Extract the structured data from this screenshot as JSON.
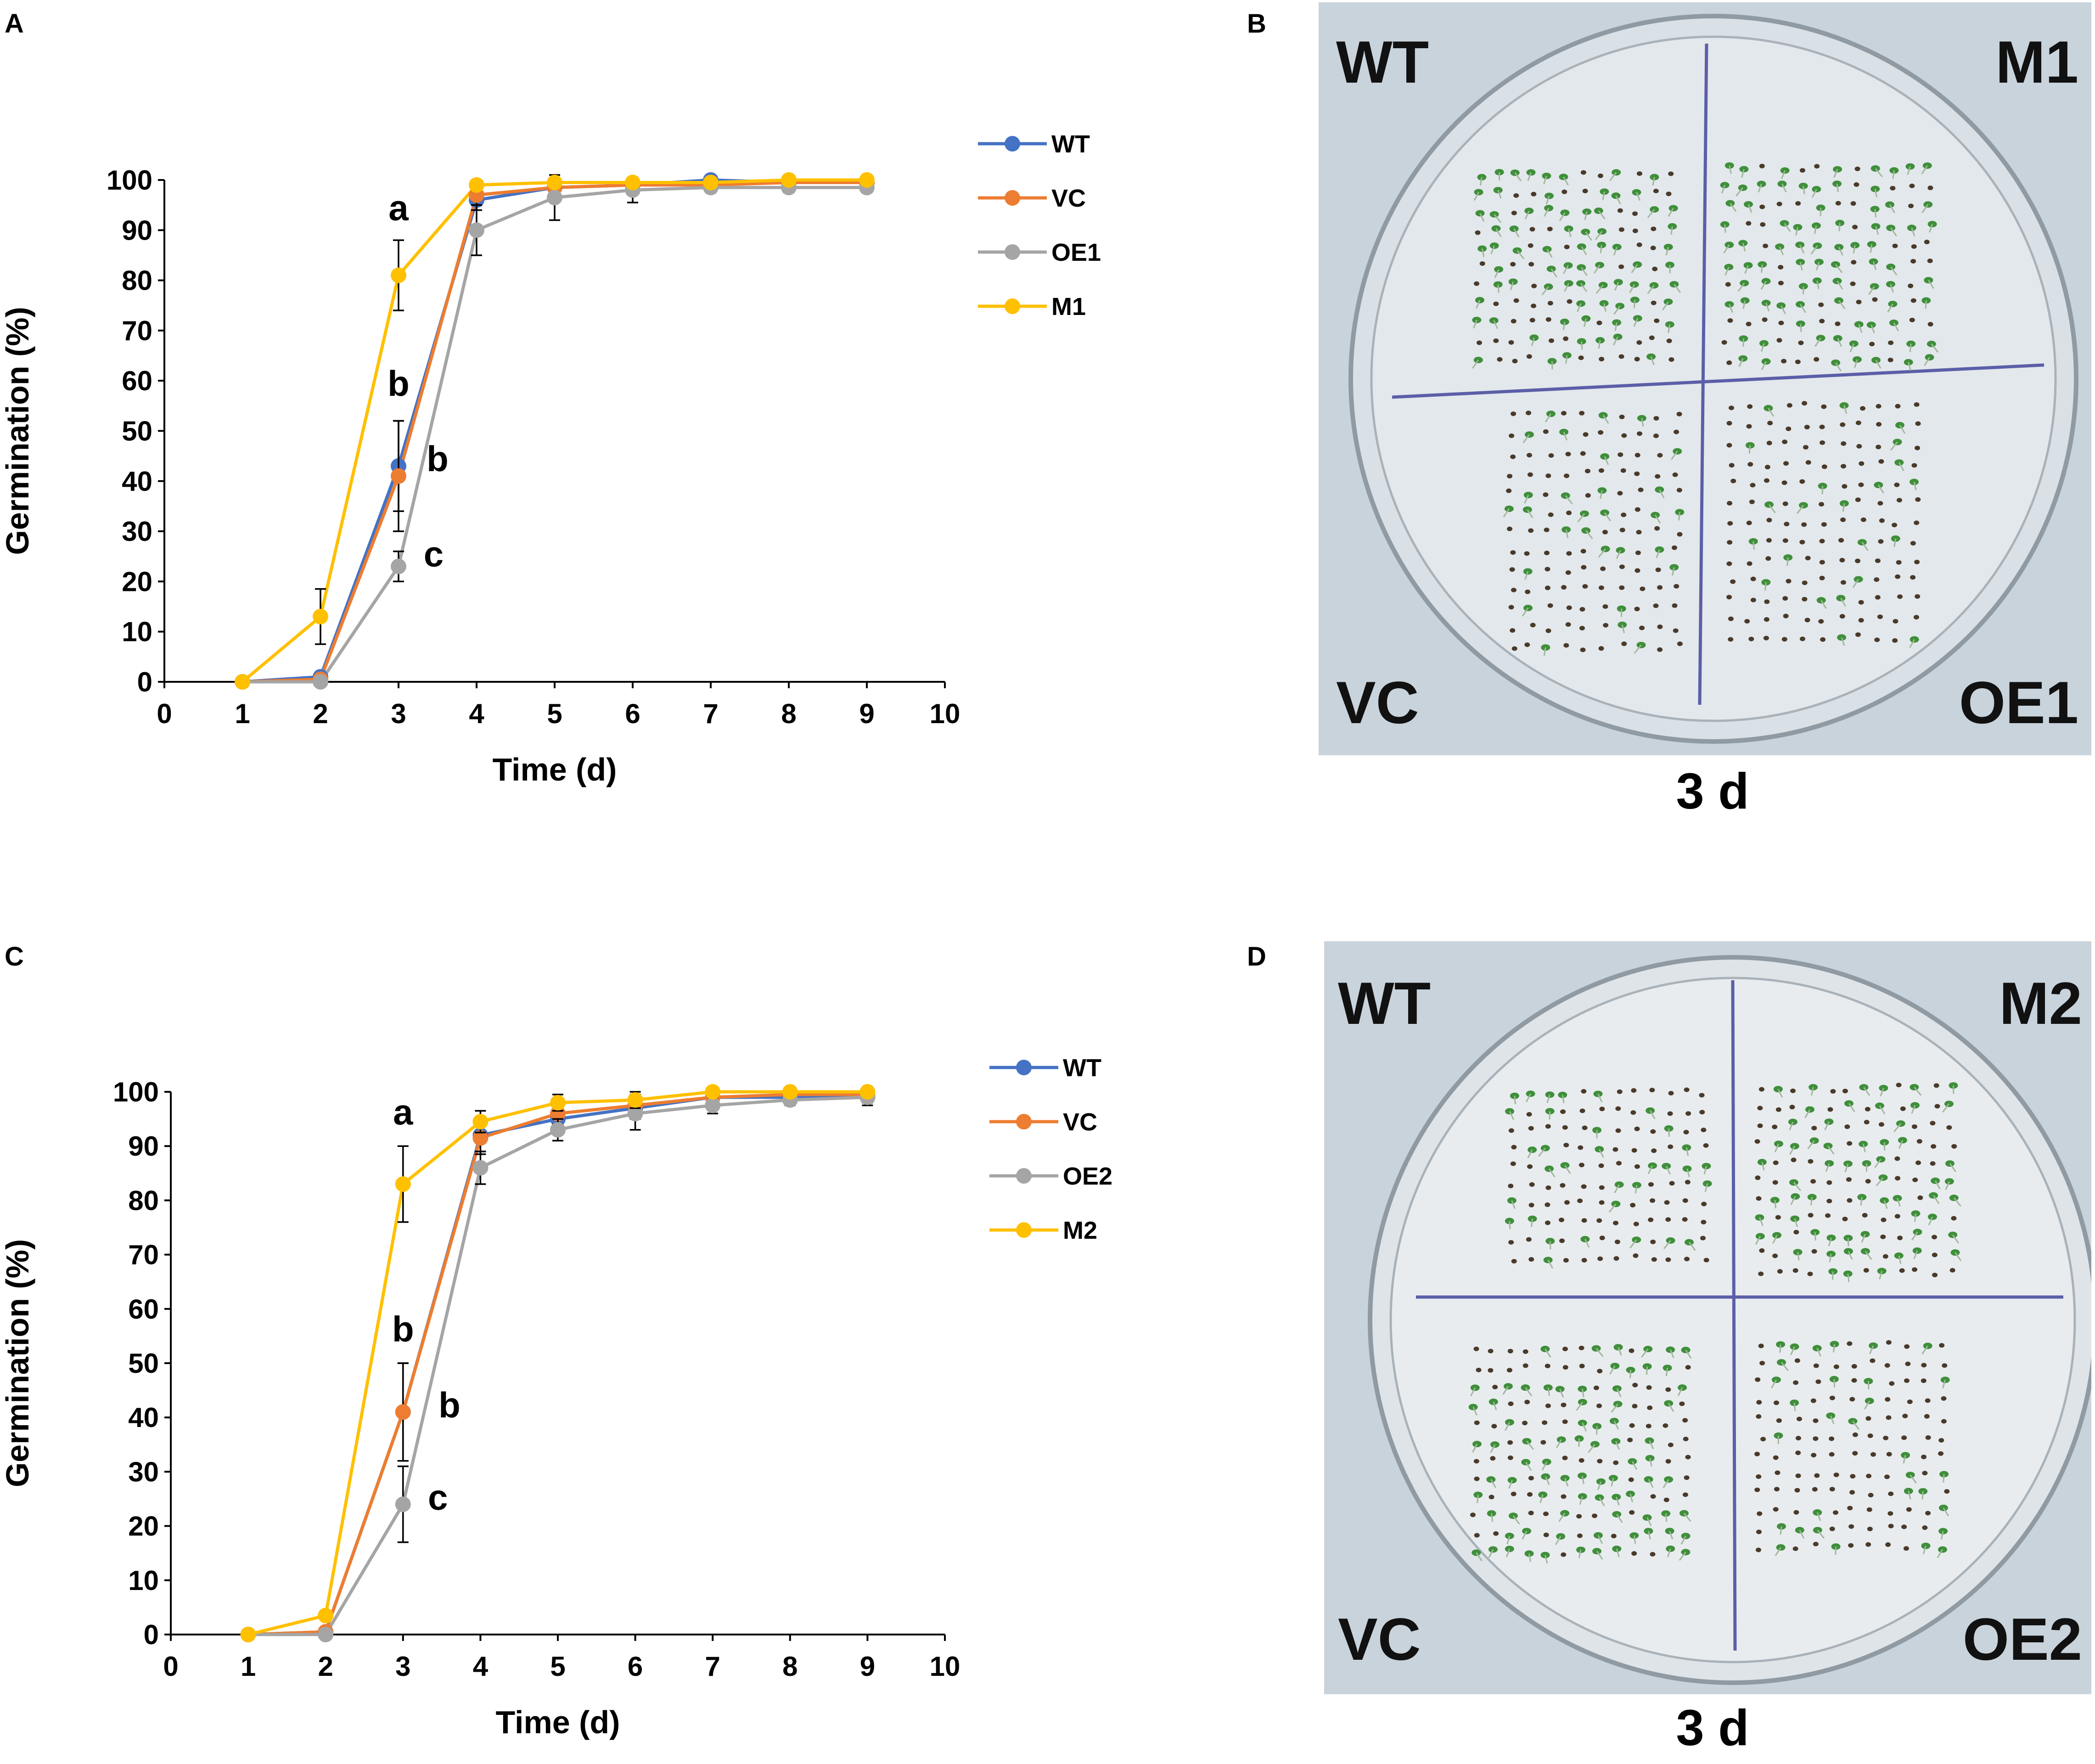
{
  "panels": {
    "A": "A",
    "B": "B",
    "C": "C",
    "D": "D"
  },
  "colors": {
    "WT": "#4472C4",
    "VC": "#ED7D31",
    "OE": "#A5A5A5",
    "M": "#FFC000"
  },
  "chart_data": [
    {
      "id": "A",
      "type": "line",
      "title": "",
      "xlabel": "Time (d)",
      "ylabel": "Germination (%)",
      "xlim": [
        0,
        10
      ],
      "ylim": [
        0,
        100
      ],
      "xticks": [
        0,
        1,
        2,
        3,
        4,
        5,
        6,
        7,
        8,
        9,
        10
      ],
      "yticks": [
        0,
        10,
        20,
        30,
        40,
        50,
        60,
        70,
        80,
        90,
        100
      ],
      "x": [
        1,
        2,
        3,
        4,
        5,
        6,
        7,
        8,
        9
      ],
      "series": [
        {
          "name": "WT",
          "color": "#4472C4",
          "values": [
            0,
            1,
            43,
            96,
            98.5,
            99,
            100,
            99.5,
            99.5
          ],
          "errors": [
            0,
            0.5,
            9,
            2,
            1.5,
            1,
            0,
            0.5,
            0.5
          ]
        },
        {
          "name": "VC",
          "color": "#ED7D31",
          "values": [
            0,
            0.5,
            41,
            97,
            98.5,
            99,
            99,
            99.5,
            99.5
          ],
          "errors": [
            0,
            0.5,
            11,
            2,
            1,
            1,
            1,
            0.5,
            0.5
          ]
        },
        {
          "name": "OE1",
          "color": "#A5A5A5",
          "values": [
            0,
            0,
            23,
            90,
            96.5,
            98,
            98.5,
            98.5,
            98.5
          ],
          "errors": [
            0,
            0,
            3,
            5,
            4.5,
            2.5,
            1,
            1,
            1
          ]
        },
        {
          "name": "M1",
          "color": "#FFC000",
          "values": [
            0,
            13,
            81,
            99,
            99.5,
            99.5,
            99.5,
            100,
            100
          ],
          "errors": [
            0,
            5.5,
            7,
            1,
            0.5,
            0.5,
            0.5,
            0,
            0
          ]
        }
      ],
      "annotations": [
        {
          "text": "a",
          "x": 3,
          "y": 92
        },
        {
          "text": "b",
          "x": 3,
          "y": 57
        },
        {
          "text": "b",
          "x": 3.5,
          "y": 42
        },
        {
          "text": "c",
          "x": 3.45,
          "y": 23
        }
      ]
    },
    {
      "id": "C",
      "type": "line",
      "title": "",
      "xlabel": "Time (d)",
      "ylabel": "Germination (%)",
      "xlim": [
        0,
        10
      ],
      "ylim": [
        0,
        100
      ],
      "xticks": [
        0,
        1,
        2,
        3,
        4,
        5,
        6,
        7,
        8,
        9,
        10
      ],
      "yticks": [
        0,
        10,
        20,
        30,
        40,
        50,
        60,
        70,
        80,
        90,
        100
      ],
      "x": [
        1,
        2,
        3,
        4,
        5,
        6,
        7,
        8,
        9
      ],
      "series": [
        {
          "name": "WT",
          "color": "#4472C4",
          "values": [
            0,
            0.5,
            41,
            92,
            95,
            97,
            99,
            99,
            99
          ],
          "errors": [
            0,
            0.5,
            9,
            3,
            2,
            2,
            1,
            1,
            1
          ]
        },
        {
          "name": "VC",
          "color": "#ED7D31",
          "values": [
            0,
            0.5,
            41,
            91.5,
            96,
            97.5,
            99,
            99.5,
            99.5
          ],
          "errors": [
            0,
            0.5,
            9,
            3,
            2,
            2,
            1,
            0.5,
            0.5
          ]
        },
        {
          "name": "OE2",
          "color": "#A5A5A5",
          "values": [
            0,
            0,
            24,
            86,
            93,
            96,
            97.5,
            98.5,
            99
          ],
          "errors": [
            0,
            0,
            7,
            3,
            2,
            3,
            1.5,
            1,
            1.5
          ]
        },
        {
          "name": "M2",
          "color": "#FFC000",
          "values": [
            0,
            3.5,
            83,
            94.5,
            98,
            98.5,
            100,
            100,
            100
          ],
          "errors": [
            0,
            0.5,
            7,
            2,
            1.5,
            1.5,
            0,
            0,
            0
          ]
        }
      ],
      "annotations": [
        {
          "text": "a",
          "x": 3,
          "y": 94
        },
        {
          "text": "b",
          "x": 3,
          "y": 54
        },
        {
          "text": "b",
          "x": 3.6,
          "y": 40
        },
        {
          "text": "c",
          "x": 3.45,
          "y": 23
        }
      ]
    }
  ],
  "photos": [
    {
      "id": "B",
      "top_left": "WT",
      "top_right": "M1",
      "bottom_left": "VC",
      "bottom_right": "OE1",
      "caption": "3 d"
    },
    {
      "id": "D",
      "top_left": "WT",
      "top_right": "M2",
      "bottom_left": "VC",
      "bottom_right": "OE2",
      "caption": "3 d"
    }
  ]
}
